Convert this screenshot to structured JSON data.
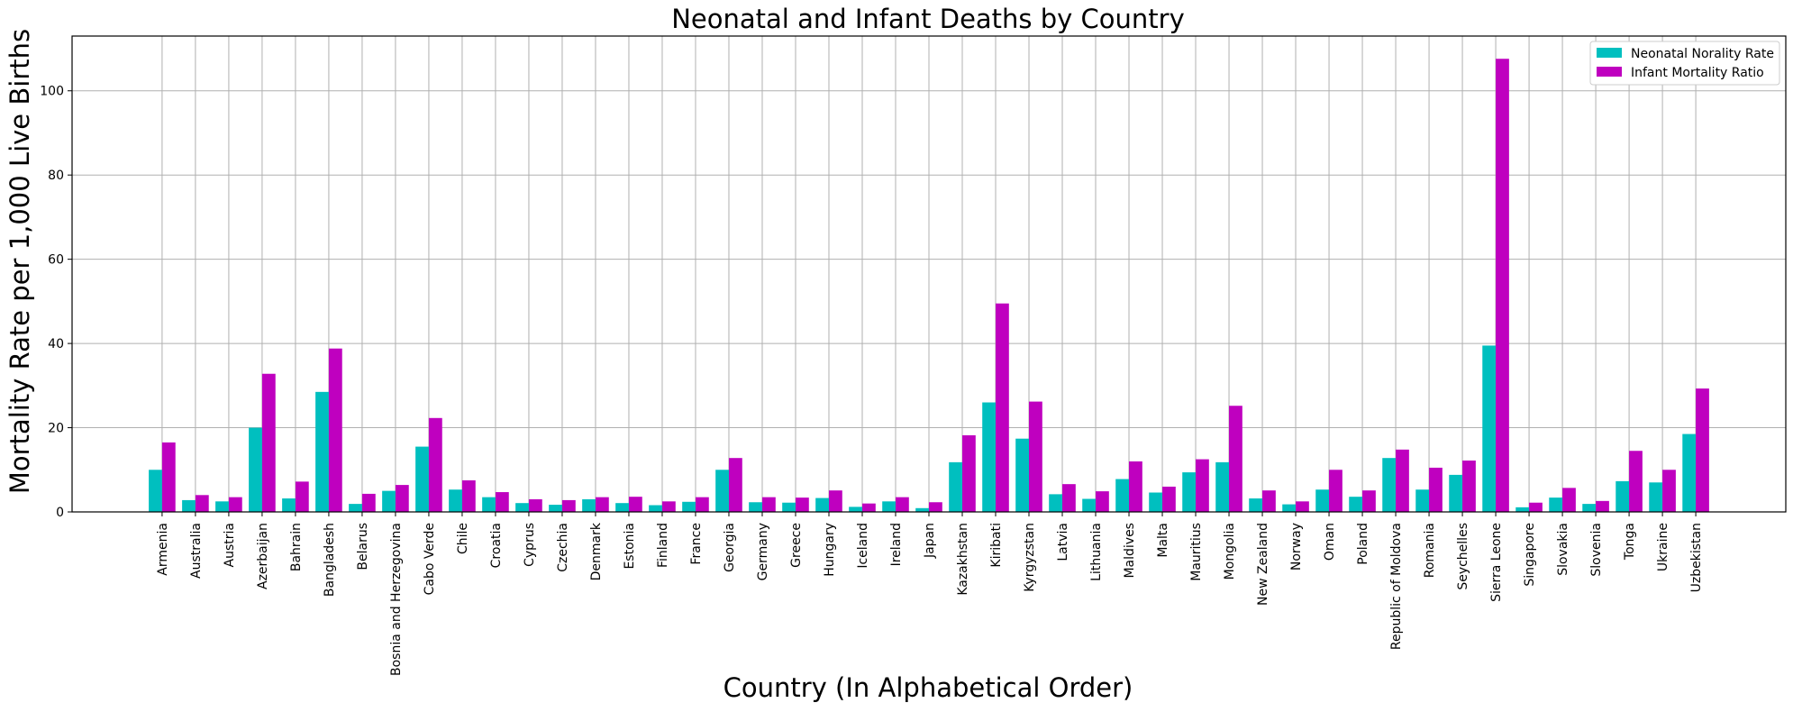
{
  "chart_data": {
    "type": "bar",
    "title": "Neonatal and Infant Deaths by Country",
    "xlabel": "Country (In Alphabetical Order)",
    "ylabel": "Mortality Rate per 1,000 Live Births",
    "ylim": [
      0,
      113
    ],
    "yticks": [
      0,
      20,
      40,
      60,
      80,
      100
    ],
    "grid": true,
    "legend_position": "top-right",
    "categories": [
      "Armenia",
      "Australia",
      "Austria",
      "Azerbaijan",
      "Bahrain",
      "Bangladesh",
      "Belarus",
      "Bosnia and Herzegovina",
      "Cabo Verde",
      "Chile",
      "Croatia",
      "Cyprus",
      "Czechia",
      "Denmark",
      "Estonia",
      "Finland",
      "France",
      "Georgia",
      "Germany",
      "Greece",
      "Hungary",
      "Iceland",
      "Ireland",
      "Japan",
      "Kazakhstan",
      "Kiribati",
      "Kyrgyzstan",
      "Latvia",
      "Lithuania",
      "Maldives",
      "Malta",
      "Mauritius",
      "Mongolia",
      "New Zealand",
      "Norway",
      "Oman",
      "Poland",
      "Republic of Moldova",
      "Romania",
      "Seychelles",
      "Sierra Leone",
      "Singapore",
      "Slovakia",
      "Slovenia",
      "Tonga",
      "Ukraine",
      "Uzbekistan"
    ],
    "series": [
      {
        "name": "Neonatal Norality Rate",
        "color": "#00bfbf",
        "values": [
          10.0,
          2.8,
          2.5,
          20.0,
          3.2,
          28.5,
          1.9,
          5.0,
          15.5,
          5.3,
          3.5,
          2.1,
          1.7,
          3.0,
          2.1,
          1.6,
          2.4,
          10.0,
          2.3,
          2.2,
          3.3,
          1.2,
          2.5,
          0.9,
          11.8,
          26.0,
          17.4,
          4.2,
          3.1,
          7.8,
          4.6,
          9.4,
          11.8,
          3.2,
          1.8,
          5.3,
          3.6,
          12.8,
          5.3,
          8.8,
          39.5,
          1.1,
          3.4,
          1.9,
          7.3,
          7.0,
          18.5
        ]
      },
      {
        "name": "Infant Mortality Ratio",
        "color": "#bf00bf",
        "values": [
          16.5,
          4.0,
          3.5,
          32.8,
          7.2,
          38.8,
          4.3,
          6.4,
          22.3,
          7.5,
          4.7,
          3.0,
          2.8,
          3.5,
          3.6,
          2.5,
          3.5,
          12.8,
          3.5,
          3.4,
          5.1,
          2.0,
          3.5,
          2.3,
          18.2,
          49.5,
          26.2,
          6.6,
          4.9,
          12.0,
          6.0,
          12.5,
          25.2,
          5.1,
          2.5,
          10.0,
          5.1,
          14.8,
          10.5,
          12.2,
          107.6,
          2.2,
          5.7,
          2.6,
          14.5,
          10.0,
          29.3
        ]
      }
    ]
  }
}
